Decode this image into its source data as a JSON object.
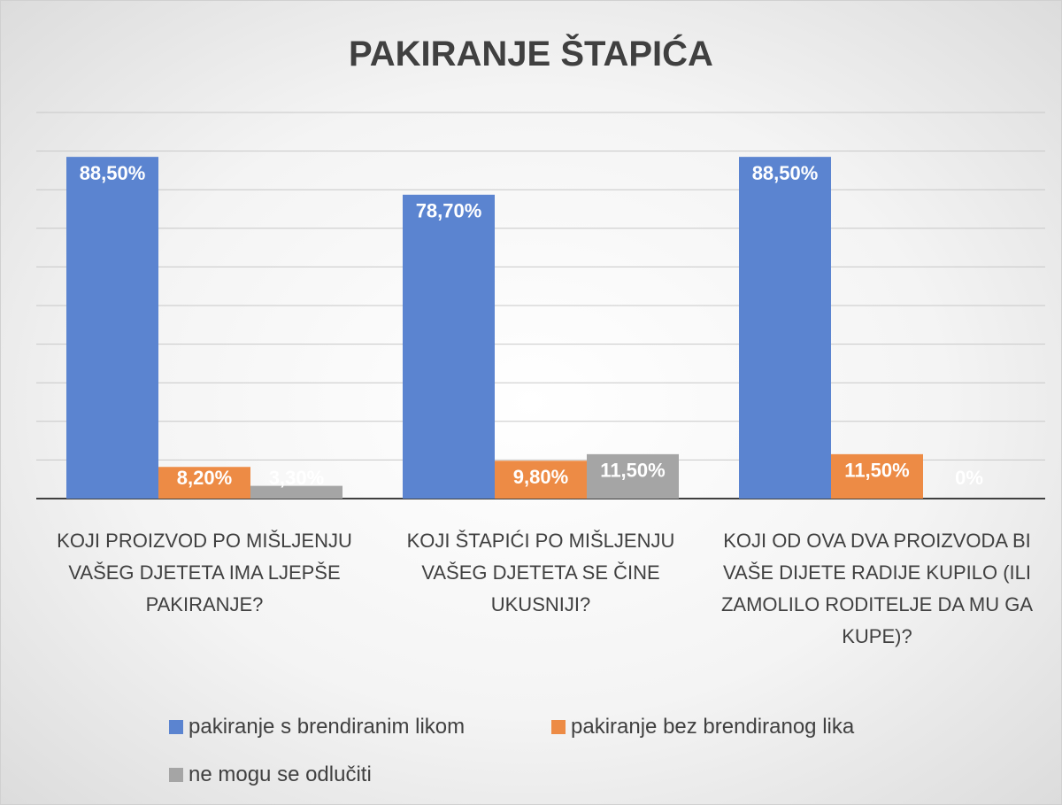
{
  "chart_data": {
    "type": "bar",
    "title": "PAKIRANJE ŠTAPIĆA",
    "categories": [
      "KOJI PROIZVOD PO MIŠLJENJU VAŠEG DJETETA IMA LJEPŠE PAKIRANJE?",
      "KOJI ŠTAPIĆI PO MIŠLJENJU VAŠEG DJETETA SE ČINE UKUSNIJI?",
      "KOJI OD OVA DVA PROIZVODA BI VAŠE DIJETE RADIJE KUPILO (ILI ZAMOLILO RODITELJE DA MU GA KUPE)?"
    ],
    "series": [
      {
        "name": "pakiranje s brendiranim likom",
        "color": "#5b84d0",
        "values": [
          88.5,
          78.7,
          88.5
        ],
        "value_labels": [
          "88,50%",
          "78,70%",
          "88,50%"
        ]
      },
      {
        "name": "pakiranje bez brendiranog lika",
        "color": "#ed8b45",
        "values": [
          8.2,
          9.8,
          11.5
        ],
        "value_labels": [
          "8,20%",
          "9,80%",
          "11,50%"
        ]
      },
      {
        "name": "ne mogu se odlučiti",
        "color": "#a5a5a5",
        "values": [
          3.3,
          11.5,
          0
        ],
        "value_labels": [
          "3,30%",
          "11,50%",
          "0%"
        ]
      }
    ],
    "ylim": [
      0,
      100
    ],
    "yticks": [
      0,
      10,
      20,
      30,
      40,
      50,
      60,
      70,
      80,
      90,
      100
    ],
    "grid": true
  }
}
